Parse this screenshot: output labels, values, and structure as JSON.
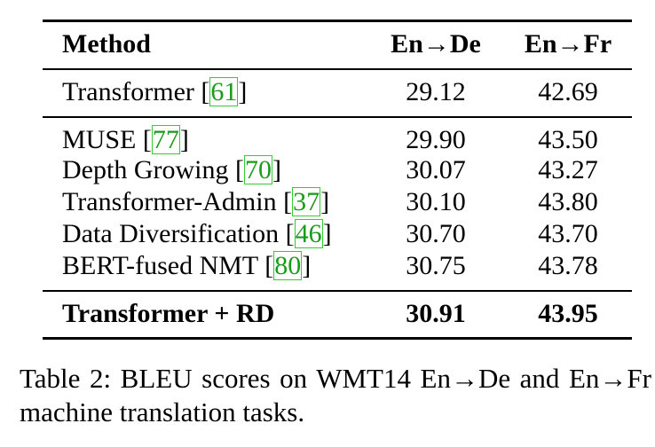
{
  "table": {
    "headers": {
      "method": "Method",
      "en_de": "En→De",
      "en_fr": "En→Fr"
    },
    "baseline": {
      "method": "Transformer",
      "ref": "61",
      "en_de": "29.12",
      "en_fr": "42.69"
    },
    "rows": [
      {
        "method": "MUSE",
        "ref": "77",
        "en_de": "29.90",
        "en_fr": "43.50"
      },
      {
        "method": "Depth Growing",
        "ref": "70",
        "en_de": "30.07",
        "en_fr": "43.27"
      },
      {
        "method": "Transformer-Admin",
        "ref": "37",
        "en_de": "30.10",
        "en_fr": "43.80"
      },
      {
        "method": "Data Diversification",
        "ref": "46",
        "en_de": "30.70",
        "en_fr": "43.70"
      },
      {
        "method": "BERT-fused NMT",
        "ref": "80",
        "en_de": "30.75",
        "en_fr": "43.78"
      }
    ],
    "ours": {
      "method": "Transformer + RD",
      "en_de": "30.91",
      "en_fr": "43.95"
    }
  },
  "caption": "Table 2: BLEU scores on WMT14 En→De and En→Fr machine translation tasks.",
  "colors": {
    "citation_text": "#1a9b1a",
    "citation_box": "#33cc33"
  }
}
